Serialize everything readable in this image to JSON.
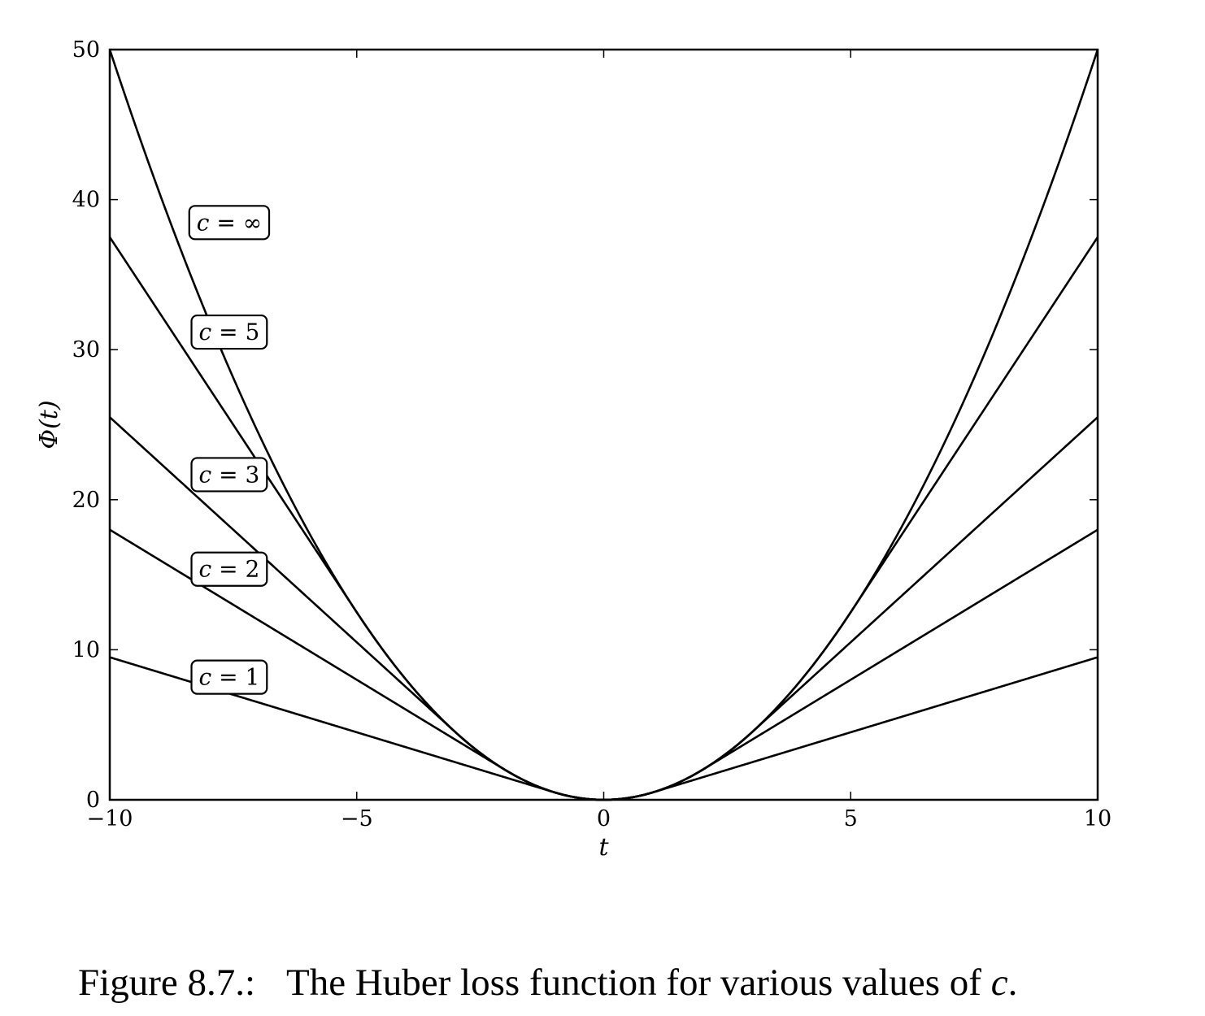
{
  "chart_data": {
    "type": "line",
    "xlabel": "t",
    "ylabel": "Φ(t)",
    "xlim": [
      -10,
      10
    ],
    "ylim": [
      0,
      50
    ],
    "xticks": [
      -10,
      -5,
      0,
      5,
      10
    ],
    "xtick_labels": [
      "−10",
      "−5",
      "0",
      "5",
      "10"
    ],
    "yticks": [
      0,
      10,
      20,
      30,
      40,
      50
    ],
    "ytick_labels": [
      "0",
      "10",
      "20",
      "30",
      "40",
      "50"
    ],
    "grid": false,
    "legend": "none (inline boxed labels near left edge)",
    "function": "Huber loss: Φ(t) = t²/2 if |t| ≤ c, else c|t| − c²/2",
    "series": [
      {
        "name": "c = ∞",
        "label": "c = ∞",
        "c": null,
        "label_at": {
          "x": -8.8,
          "y": 38.5
        },
        "x": [
          -10,
          -8,
          -6,
          -4,
          -2,
          0,
          2,
          4,
          6,
          8,
          10
        ],
        "y": [
          50,
          32,
          18,
          8,
          2,
          0,
          2,
          8,
          18,
          32,
          50
        ]
      },
      {
        "name": "c = 5",
        "label": "c = 5",
        "c": 5,
        "label_at": {
          "x": -8.8,
          "y": 31.2
        },
        "x": [
          -10,
          -5,
          0,
          5,
          10
        ],
        "y": [
          37.5,
          12.5,
          0,
          12.5,
          37.5
        ]
      },
      {
        "name": "c = 3",
        "label": "c = 3",
        "c": 3,
        "label_at": {
          "x": -8.8,
          "y": 21.7
        },
        "x": [
          -10,
          -3,
          0,
          3,
          10
        ],
        "y": [
          25.5,
          4.5,
          0,
          4.5,
          25.5
        ]
      },
      {
        "name": "c = 2",
        "label": "c = 2",
        "c": 2,
        "label_at": {
          "x": -8.8,
          "y": 15.4
        },
        "x": [
          -10,
          -2,
          0,
          2,
          10
        ],
        "y": [
          18,
          2,
          0,
          2,
          18
        ]
      },
      {
        "name": "c = 1",
        "label": "c = 1",
        "c": 1,
        "label_at": {
          "x": -8.8,
          "y": 8.2
        },
        "x": [
          -10,
          -1,
          0,
          1,
          10
        ],
        "y": [
          9.5,
          0.5,
          0,
          0.5,
          9.5
        ]
      }
    ]
  },
  "caption": {
    "prefix": "Figure 8.7.:",
    "text": "The Huber loss function for various values of",
    "var": "c",
    "suffix": "."
  }
}
